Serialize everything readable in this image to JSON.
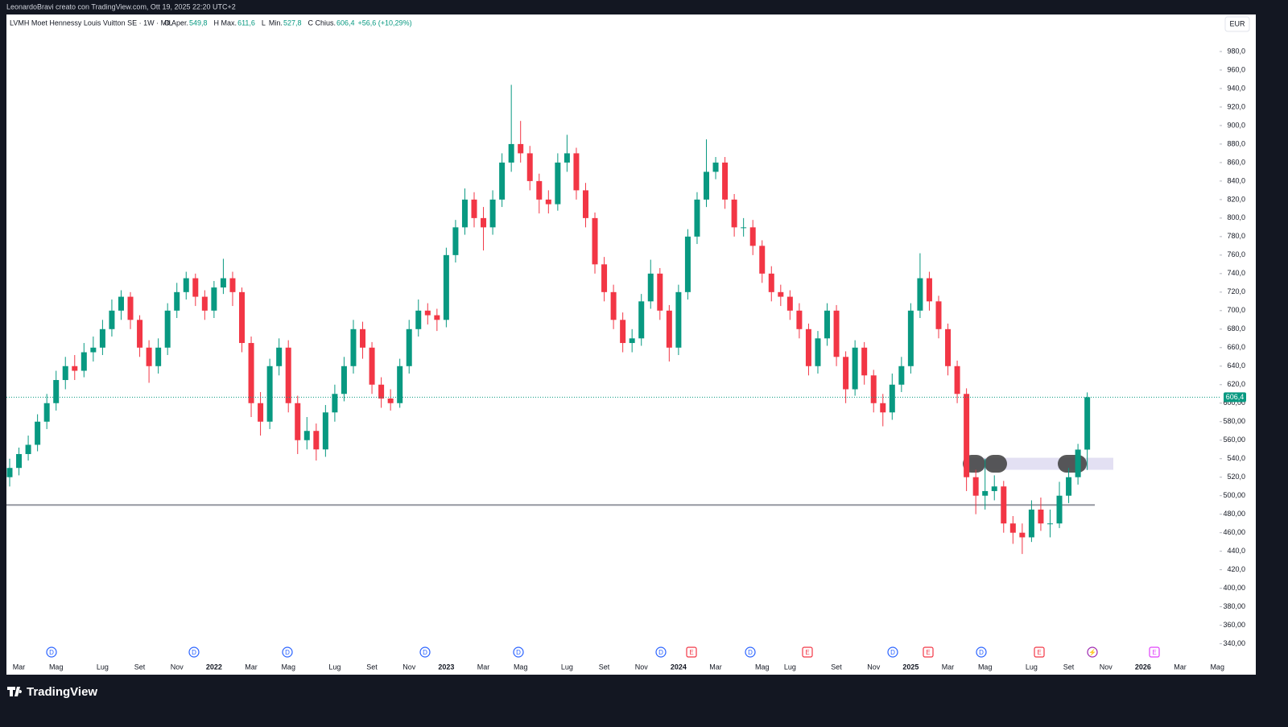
{
  "header": {
    "credit": "LeonardoBravi creato con TradingView.com, Ott 19, 2025 22:20 UTC+2"
  },
  "footer": {
    "brand": "TradingView"
  },
  "chart_data": {
    "type": "candlestick",
    "symbol": "LVMH Moet Hennessy Louis Vuitton SE · 1W · MIL",
    "legend": [
      {
        "key": "O",
        "name": "Aper.",
        "value": "549,8"
      },
      {
        "key": "H",
        "name": "Max.",
        "value": "611,6"
      },
      {
        "key": "L",
        "name": "Min.",
        "value": "527,8"
      },
      {
        "key": "C",
        "name": "Chius.",
        "value": "606,4"
      }
    ],
    "change": "+56,6 (+10,29%)",
    "currency": "EUR",
    "up_color": "#089981",
    "down_color": "#f23645",
    "categories": [
      null,
      "Mar",
      null,
      null,
      null,
      "Mag",
      null,
      null,
      null,
      null,
      "Lug",
      null,
      null,
      null,
      "Set",
      null,
      null,
      null,
      "Nov",
      null,
      null,
      null,
      "2022",
      null,
      null,
      null,
      "Mar",
      null,
      null,
      null,
      "Mag",
      null,
      null,
      null,
      null,
      "Lug",
      null,
      null,
      null,
      "Set",
      null,
      null,
      null,
      "Nov",
      null,
      null,
      null,
      "2023",
      null,
      null,
      null,
      "Mar",
      null,
      null,
      null,
      "Mag",
      null,
      null,
      null,
      null,
      "Lug",
      null,
      null,
      null,
      "Set",
      null,
      null,
      null,
      "Nov",
      null,
      null,
      null,
      "2024",
      null,
      null,
      null,
      "Mar",
      null,
      null,
      null,
      null,
      "Mag",
      null,
      null,
      "Lug",
      null,
      null,
      null,
      null,
      "Set",
      null,
      null,
      null,
      "Nov",
      null,
      null,
      null,
      "2025",
      null,
      null,
      null,
      "Mar",
      null,
      null,
      null,
      "Mag",
      null,
      null,
      null,
      null,
      "Lug",
      null,
      null,
      null,
      "Set",
      null,
      null,
      null,
      "Nov",
      null,
      null,
      null,
      "2026",
      null,
      null,
      null,
      "Mar",
      null,
      null,
      null,
      "Mag"
    ],
    "open": [
      520,
      530,
      545,
      555,
      580,
      600,
      625,
      640,
      635,
      655,
      660,
      680,
      700,
      715,
      690,
      660,
      640,
      660,
      700,
      720,
      735,
      715,
      700,
      725,
      735,
      720,
      665,
      600,
      580,
      640,
      660,
      600,
      560,
      570,
      550,
      590,
      610,
      640,
      680,
      660,
      620,
      605,
      600,
      640,
      680,
      700,
      695,
      690,
      760,
      790,
      820,
      800,
      790,
      820,
      860,
      880,
      870,
      840,
      820,
      815,
      860,
      870,
      830,
      800,
      750,
      720,
      690,
      665,
      670,
      710,
      740,
      700,
      660,
      720,
      780,
      820,
      850,
      860,
      820,
      790,
      790,
      770,
      740,
      720,
      715,
      700,
      680,
      640,
      670,
      700,
      650,
      615,
      660,
      630,
      600,
      590,
      620,
      640,
      700,
      735,
      710,
      680,
      640,
      610,
      520,
      500,
      505,
      510,
      470,
      460,
      455,
      485,
      470,
      470,
      500,
      520,
      549.8,
      null,
      null,
      null,
      null,
      null,
      null,
      null,
      null,
      null,
      null,
      null,
      null,
      null,
      null
    ],
    "high": [
      540,
      552,
      565,
      588,
      610,
      635,
      650,
      652,
      665,
      672,
      690,
      712,
      722,
      720,
      695,
      668,
      670,
      708,
      730,
      742,
      740,
      722,
      732,
      756,
      742,
      725,
      672,
      612,
      648,
      670,
      668,
      608,
      585,
      578,
      598,
      620,
      650,
      690,
      688,
      666,
      628,
      615,
      648,
      690,
      712,
      708,
      702,
      768,
      798,
      832,
      828,
      812,
      830,
      870,
      944,
      905,
      878,
      848,
      830,
      870,
      890,
      876,
      838,
      806,
      758,
      728,
      698,
      680,
      718,
      755,
      746,
      706,
      728,
      788,
      828,
      885,
      866,
      866,
      826,
      800,
      798,
      776,
      748,
      728,
      722,
      708,
      686,
      678,
      708,
      706,
      656,
      668,
      666,
      636,
      610,
      632,
      650,
      708,
      762,
      742,
      716,
      686,
      646,
      616,
      528,
      540,
      522,
      516,
      478,
      470,
      495,
      498,
      485,
      515,
      530,
      556,
      611.6,
      null,
      null,
      null,
      null,
      null,
      null,
      null,
      null,
      null,
      null,
      null,
      null,
      null,
      null
    ],
    "low": [
      510,
      522,
      538,
      548,
      572,
      592,
      615,
      625,
      628,
      645,
      652,
      672,
      690,
      680,
      650,
      622,
      632,
      652,
      692,
      712,
      705,
      690,
      692,
      718,
      705,
      655,
      585,
      565,
      572,
      630,
      590,
      545,
      550,
      538,
      542,
      580,
      602,
      632,
      648,
      610,
      595,
      592,
      595,
      632,
      672,
      685,
      678,
      682,
      752,
      782,
      790,
      765,
      782,
      812,
      850,
      860,
      830,
      805,
      805,
      808,
      850,
      820,
      790,
      740,
      710,
      680,
      655,
      655,
      662,
      702,
      690,
      645,
      652,
      712,
      772,
      812,
      842,
      810,
      780,
      780,
      760,
      730,
      710,
      705,
      690,
      670,
      630,
      632,
      662,
      640,
      600,
      608,
      620,
      590,
      575,
      582,
      612,
      632,
      692,
      700,
      670,
      630,
      600,
      505,
      480,
      485,
      495,
      460,
      448,
      437,
      450,
      462,
      455,
      465,
      492,
      512,
      527.8,
      null,
      null,
      null,
      null,
      null,
      null,
      null,
      null,
      null,
      null,
      null,
      null,
      null,
      null
    ],
    "close": [
      530,
      545,
      555,
      580,
      600,
      625,
      640,
      635,
      655,
      660,
      680,
      700,
      715,
      690,
      660,
      640,
      660,
      700,
      720,
      735,
      715,
      700,
      725,
      735,
      720,
      665,
      600,
      580,
      640,
      660,
      600,
      560,
      570,
      550,
      590,
      610,
      640,
      680,
      660,
      620,
      605,
      600,
      640,
      680,
      700,
      695,
      690,
      760,
      790,
      820,
      800,
      790,
      820,
      860,
      880,
      870,
      840,
      820,
      815,
      860,
      870,
      830,
      800,
      750,
      720,
      690,
      665,
      670,
      710,
      740,
      700,
      660,
      720,
      780,
      820,
      850,
      860,
      820,
      790,
      790,
      770,
      740,
      720,
      715,
      700,
      680,
      640,
      670,
      700,
      650,
      615,
      660,
      630,
      600,
      590,
      620,
      640,
      700,
      735,
      710,
      680,
      640,
      610,
      520,
      500,
      505,
      510,
      470,
      460,
      455,
      485,
      470,
      470,
      500,
      520,
      549.8,
      606.4,
      null,
      null,
      null,
      null,
      null,
      null,
      null,
      null,
      null,
      null,
      null,
      null,
      null,
      null
    ],
    "last_price_label": "606,4",
    "support_level": 490,
    "zone": [
      528,
      541
    ],
    "events": [
      "D",
      "D",
      "D",
      "D",
      "D",
      "D",
      "E",
      "D",
      "E",
      "D",
      "E",
      "D",
      "E",
      "⚡",
      "E"
    ],
    "ylim": [
      324,
      1020
    ],
    "yticks": [
      {
        "value": 340,
        "label": "340,00"
      },
      {
        "value": 360,
        "label": "360,00"
      },
      {
        "value": 380,
        "label": "380,00"
      },
      {
        "value": 400,
        "label": "400,00"
      },
      {
        "value": 420,
        "label": "420,0"
      },
      {
        "value": 440,
        "label": "440,0"
      },
      {
        "value": 460,
        "label": "460,00"
      },
      {
        "value": 480,
        "label": "480,00"
      },
      {
        "value": 500,
        "label": "500,00"
      },
      {
        "value": 520,
        "label": "520,0"
      },
      {
        "value": 540,
        "label": "540,0"
      },
      {
        "value": 560,
        "label": "560,00"
      },
      {
        "value": 580,
        "label": "580,00"
      },
      {
        "value": 600,
        "label": "600,00"
      },
      {
        "value": 620,
        "label": "620,0"
      },
      {
        "value": 640,
        "label": "640,0"
      },
      {
        "value": 660,
        "label": "660,0"
      },
      {
        "value": 680,
        "label": "680,0"
      },
      {
        "value": 700,
        "label": "700,0"
      },
      {
        "value": 720,
        "label": "720,0"
      },
      {
        "value": 740,
        "label": "740,0"
      },
      {
        "value": 760,
        "label": "760,0"
      },
      {
        "value": 780,
        "label": "780,0"
      },
      {
        "value": 800,
        "label": "800,0"
      },
      {
        "value": 820,
        "label": "820,0"
      },
      {
        "value": 840,
        "label": "840,0"
      },
      {
        "value": 860,
        "label": "860,0"
      },
      {
        "value": 880,
        "label": "880,0"
      },
      {
        "value": 900,
        "label": "900,0"
      },
      {
        "value": 920,
        "label": "920,0"
      },
      {
        "value": 940,
        "label": "940,0"
      },
      {
        "value": 960,
        "label": "960,0"
      },
      {
        "value": 980,
        "label": "980,0"
      }
    ],
    "grid": false
  }
}
